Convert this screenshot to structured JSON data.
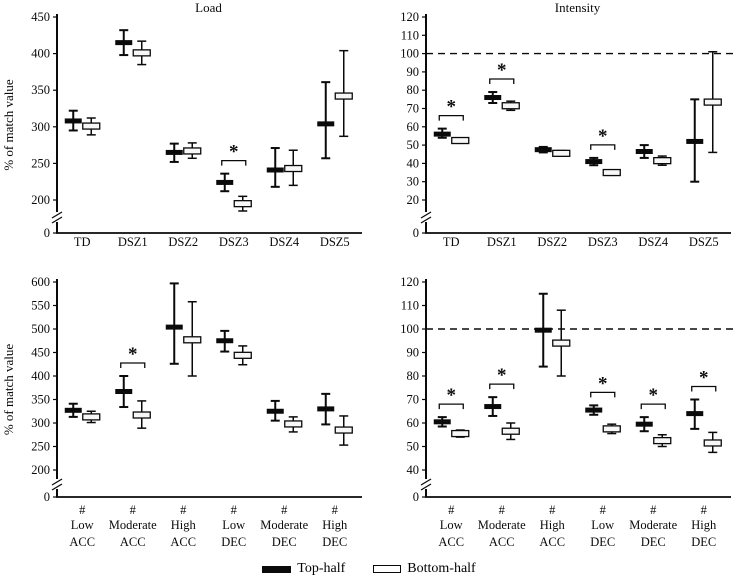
{
  "colors": {
    "ink": "#0a0a0a",
    "open_fill": "#f7f7f7",
    "background": "#ffffff"
  },
  "legend": {
    "items": [
      {
        "label": "Top-half",
        "style": "filled"
      },
      {
        "label": "Bottom-half",
        "style": "open"
      }
    ]
  },
  "chart_data": [
    {
      "id": "load-by-group",
      "type": "errorbar",
      "title": "Load",
      "ylabel": "% of match value",
      "yticks": [
        0,
        200,
        250,
        300,
        350,
        400,
        450
      ],
      "ylim": [
        0,
        450
      ],
      "axis_break": true,
      "grid": false,
      "reference_line": null,
      "categories": [
        "TD",
        "DSZ1",
        "DSZ2",
        "DSZ3",
        "DSZ4",
        "DSZ5"
      ],
      "series": [
        {
          "name": "Top-half",
          "marker": "filled",
          "points": [
            {
              "mean": 308,
              "low": 295,
              "high": 322
            },
            {
              "mean": 415,
              "low": 398,
              "high": 432
            },
            {
              "mean": 265,
              "low": 252,
              "high": 277
            },
            {
              "mean": 224,
              "low": 212,
              "high": 236
            },
            {
              "mean": 241,
              "low": 218,
              "high": 271
            },
            {
              "mean": 304,
              "low": 257,
              "high": 361
            }
          ]
        },
        {
          "name": "Bottom-half",
          "marker": "open",
          "points": [
            {
              "mean": 301,
              "low": 289,
              "high": 312
            },
            {
              "mean": 401,
              "low": 385,
              "high": 417
            },
            {
              "mean": 267,
              "low": 257,
              "high": 278
            },
            {
              "mean": 195,
              "low": 185,
              "high": 205
            },
            {
              "mean": 243,
              "low": 220,
              "high": 268
            },
            {
              "mean": 342,
              "low": 287,
              "high": 404
            }
          ]
        }
      ],
      "significant_pairs": [
        3
      ],
      "significance_symbol": "*"
    },
    {
      "id": "intensity-by-group",
      "type": "errorbar",
      "title": "Intensity",
      "ylabel": "",
      "yticks": [
        0,
        20,
        30,
        40,
        50,
        60,
        70,
        80,
        90,
        100,
        110,
        120
      ],
      "ylim": [
        0,
        120
      ],
      "axis_break": true,
      "grid": false,
      "reference_line": 100,
      "categories": [
        "TD",
        "DSZ1",
        "DSZ2",
        "DSZ3",
        "DSZ4",
        "DSZ5"
      ],
      "series": [
        {
          "name": "Top-half",
          "marker": "filled",
          "points": [
            {
              "mean": 56,
              "low": 54,
              "high": 59
            },
            {
              "mean": 76,
              "low": 73,
              "high": 79
            },
            {
              "mean": 47.5,
              "low": 46,
              "high": 49
            },
            {
              "mean": 41,
              "low": 39,
              "high": 43
            },
            {
              "mean": 46.5,
              "low": 43,
              "high": 50
            },
            {
              "mean": 52,
              "low": 30,
              "high": 75
            }
          ]
        },
        {
          "name": "Bottom-half",
          "marker": "open",
          "points": [
            {
              "mean": 52.5,
              "low": 51,
              "high": 54
            },
            {
              "mean": 71.5,
              "low": 69,
              "high": 74
            },
            {
              "mean": 45.5,
              "low": 44,
              "high": 47
            },
            {
              "mean": 35,
              "low": 33.5,
              "high": 36.5
            },
            {
              "mean": 41.5,
              "low": 39,
              "high": 44
            },
            {
              "mean": 73.5,
              "low": 46,
              "high": 101
            }
          ]
        }
      ],
      "significant_pairs": [
        0,
        1,
        3
      ],
      "significance_symbol": "*"
    },
    {
      "id": "load-by-section",
      "type": "errorbar",
      "title": "",
      "ylabel": "% of match value",
      "yticks": [
        0,
        200,
        250,
        300,
        350,
        400,
        450,
        500,
        550,
        600
      ],
      "ylim": [
        0,
        600
      ],
      "axis_break": true,
      "grid": false,
      "reference_line": null,
      "categories": [
        [
          "#",
          "Low",
          "ACC"
        ],
        [
          "#",
          "Moderate",
          "ACC"
        ],
        [
          "#",
          "High",
          "ACC"
        ],
        [
          "#",
          "Low",
          "DEC"
        ],
        [
          "#",
          "Moderate",
          "DEC"
        ],
        [
          "#",
          "High",
          "DEC"
        ]
      ],
      "series": [
        {
          "name": "Top-half",
          "marker": "filled",
          "points": [
            {
              "mean": 327,
              "low": 313,
              "high": 341
            },
            {
              "mean": 367,
              "low": 334,
              "high": 400
            },
            {
              "mean": 504,
              "low": 426,
              "high": 597
            },
            {
              "mean": 475,
              "low": 452,
              "high": 496
            },
            {
              "mean": 325,
              "low": 305,
              "high": 347
            },
            {
              "mean": 330,
              "low": 297,
              "high": 362
            }
          ]
        },
        {
          "name": "Bottom-half",
          "marker": "open",
          "points": [
            {
              "mean": 313,
              "low": 301,
              "high": 325
            },
            {
              "mean": 317,
              "low": 289,
              "high": 347
            },
            {
              "mean": 477,
              "low": 400,
              "high": 558
            },
            {
              "mean": 444,
              "low": 424,
              "high": 464
            },
            {
              "mean": 298,
              "low": 281,
              "high": 313
            },
            {
              "mean": 285,
              "low": 253,
              "high": 315
            }
          ]
        }
      ],
      "significant_pairs": [
        1
      ],
      "significance_symbol": "*"
    },
    {
      "id": "intensity-by-section",
      "type": "errorbar",
      "title": "",
      "ylabel": "",
      "yticks": [
        0,
        40,
        50,
        60,
        70,
        80,
        90,
        100,
        110,
        120
      ],
      "ylim": [
        0,
        120
      ],
      "axis_break": true,
      "grid": false,
      "reference_line": 100,
      "categories": [
        [
          "#",
          "Low",
          "ACC"
        ],
        [
          "#",
          "Moderate",
          "ACC"
        ],
        [
          "#",
          "High",
          "ACC"
        ],
        [
          "#",
          "Low",
          "DEC"
        ],
        [
          "#",
          "Moderate",
          "DEC"
        ],
        [
          "#",
          "High",
          "DEC"
        ]
      ],
      "series": [
        {
          "name": "Top-half",
          "marker": "filled",
          "points": [
            {
              "mean": 60.5,
              "low": 58.5,
              "high": 62.5
            },
            {
              "mean": 67,
              "low": 63,
              "high": 71
            },
            {
              "mean": 99.5,
              "low": 84,
              "high": 115
            },
            {
              "mean": 65.5,
              "low": 63.5,
              "high": 67.5
            },
            {
              "mean": 59.5,
              "low": 56.5,
              "high": 62.5
            },
            {
              "mean": 64,
              "low": 57.5,
              "high": 70
            }
          ]
        },
        {
          "name": "Bottom-half",
          "marker": "open",
          "points": [
            {
              "mean": 55.5,
              "low": 54,
              "high": 57
            },
            {
              "mean": 56.5,
              "low": 53,
              "high": 60
            },
            {
              "mean": 94,
              "low": 80,
              "high": 108
            },
            {
              "mean": 57.5,
              "low": 55.5,
              "high": 59.5
            },
            {
              "mean": 52.5,
              "low": 50,
              "high": 55
            },
            {
              "mean": 51.5,
              "low": 47.5,
              "high": 56
            }
          ]
        }
      ],
      "significant_pairs": [
        0,
        1,
        3,
        4,
        5
      ],
      "significance_symbol": "*"
    }
  ]
}
